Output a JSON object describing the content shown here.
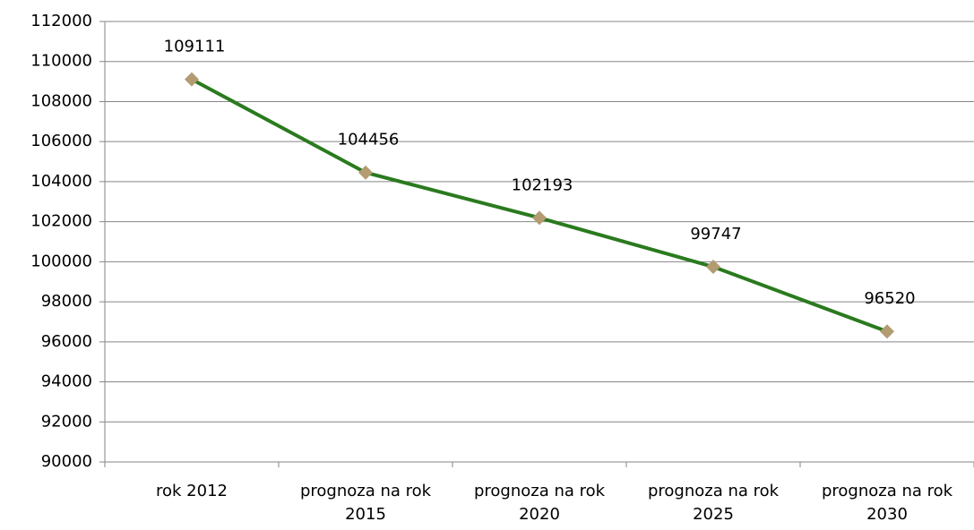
{
  "chart_data": {
    "type": "line",
    "categories": [
      "rok 2012",
      "prognoza na rok 2015",
      "prognoza na rok 2020",
      "prognoza na rok 2025",
      "prognoza na rok 2030"
    ],
    "series": [
      {
        "color": "#2a7a1e",
        "marker_color": "#b39b72",
        "values": [
          109111,
          104456,
          102193,
          99747,
          96520
        ]
      }
    ],
    "ylim": [
      90000,
      112000
    ],
    "yticks": [
      90000,
      92000,
      94000,
      96000,
      98000,
      100000,
      102000,
      104000,
      106000,
      108000,
      110000,
      112000
    ],
    "grid": true
  }
}
